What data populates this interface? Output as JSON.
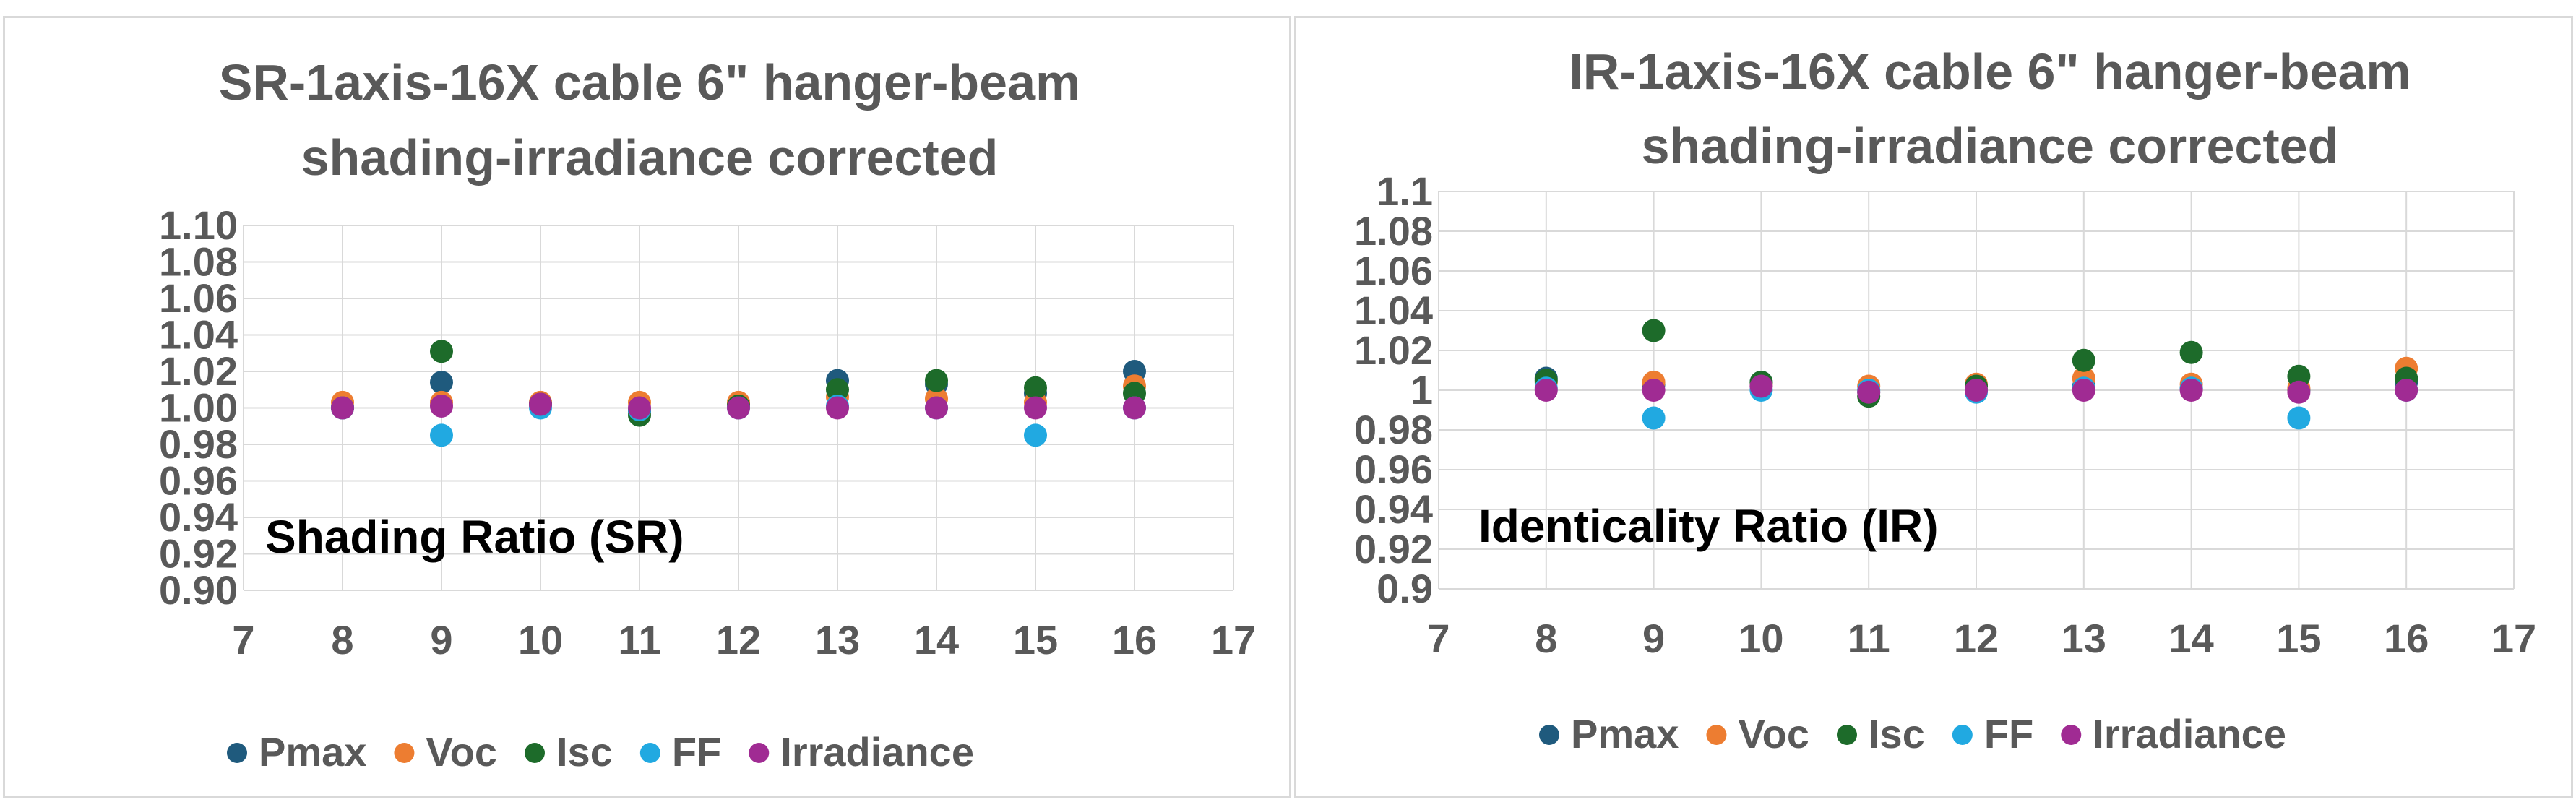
{
  "chart_data": [
    {
      "type": "scatter",
      "title_lines": [
        "SR-1axis-16X cable 6\" hanger-beam",
        "shading-irradiance corrected"
      ],
      "annotation": "Shading Ratio (SR)",
      "xlabel": "",
      "ylabel": "",
      "xlim": [
        7,
        17
      ],
      "ylim": [
        0.9,
        1.1
      ],
      "x_ticks": [
        "7",
        "8",
        "9",
        "10",
        "11",
        "12",
        "13",
        "14",
        "15",
        "16",
        "17"
      ],
      "y_ticks": [
        "0.90",
        "0.92",
        "0.94",
        "0.96",
        "0.98",
        "1.00",
        "1.02",
        "1.04",
        "1.06",
        "1.08",
        "1.10"
      ],
      "grid": true,
      "legend_position": "bottom",
      "series": [
        {
          "name": "Pmax",
          "color": "#1f5a7d",
          "x": [
            8,
            9,
            10,
            11,
            12,
            13,
            14,
            15,
            16
          ],
          "y": [
            1.0,
            1.014,
            1.002,
            0.998,
            1.002,
            1.015,
            1.013,
            1.008,
            1.02
          ]
        },
        {
          "name": "Voc",
          "color": "#ed7d31",
          "x": [
            8,
            9,
            10,
            11,
            12,
            13,
            14,
            15,
            16
          ],
          "y": [
            1.003,
            1.003,
            1.003,
            1.003,
            1.003,
            1.006,
            1.005,
            1.003,
            1.012
          ]
        },
        {
          "name": "Isc",
          "color": "#1d6b2a",
          "x": [
            8,
            9,
            10,
            11,
            12,
            13,
            14,
            15,
            16
          ],
          "y": [
            1.0,
            1.031,
            1.002,
            0.996,
            1.001,
            1.01,
            1.015,
            1.011,
            1.008
          ]
        },
        {
          "name": "FF",
          "color": "#21a9e1",
          "x": [
            8,
            9,
            10,
            11,
            12,
            13,
            14,
            15,
            16
          ],
          "y": [
            1.0,
            0.985,
            1.0,
            0.999,
            1.0,
            1.001,
            1.0,
            0.985,
            1.0
          ]
        },
        {
          "name": "Irradiance",
          "color": "#a02b93",
          "x": [
            8,
            9,
            10,
            11,
            12,
            13,
            14,
            15,
            16
          ],
          "y": [
            1.0,
            1.001,
            1.002,
            1.0,
            1.0,
            1.0,
            1.0,
            1.0,
            1.0
          ]
        }
      ]
    },
    {
      "type": "scatter",
      "title_lines": [
        "IR-1axis-16X cable 6\" hanger-beam",
        "shading-irradiance corrected"
      ],
      "annotation": "Identicality Ratio (IR)",
      "xlabel": "",
      "ylabel": "",
      "xlim": [
        7,
        17
      ],
      "ylim": [
        0.9,
        1.1
      ],
      "x_ticks": [
        "7",
        "8",
        "9",
        "10",
        "11",
        "12",
        "13",
        "14",
        "15",
        "16",
        "17"
      ],
      "y_ticks": [
        "0.9",
        "0.92",
        "0.94",
        "0.96",
        "0.98",
        "1",
        "1.02",
        "1.04",
        "1.06",
        "1.08",
        "1.1"
      ],
      "grid": true,
      "legend_position": "bottom",
      "series": [
        {
          "name": "Pmax",
          "color": "#1f5a7d",
          "x": [
            8,
            9,
            10,
            11,
            12,
            13,
            14,
            15,
            16
          ],
          "y": [
            1.006,
            1.003,
            1.004,
            0.999,
            1.0,
            1.002,
            1.001,
            1.0,
            1.004
          ]
        },
        {
          "name": "Voc",
          "color": "#ed7d31",
          "x": [
            8,
            9,
            10,
            11,
            12,
            13,
            14,
            15,
            16
          ],
          "y": [
            1.004,
            1.004,
            1.003,
            1.002,
            1.003,
            1.006,
            1.003,
            1.001,
            1.011
          ]
        },
        {
          "name": "Isc",
          "color": "#1d6b2a",
          "x": [
            8,
            9,
            10,
            11,
            12,
            13,
            14,
            15,
            16
          ],
          "y": [
            1.005,
            1.03,
            1.004,
            0.997,
            1.002,
            1.015,
            1.019,
            1.007,
            1.006
          ]
        },
        {
          "name": "FF",
          "color": "#21a9e1",
          "x": [
            8,
            9,
            10,
            11,
            12,
            13,
            14,
            15,
            16
          ],
          "y": [
            1.001,
            0.986,
            1.0,
            1.0,
            0.999,
            1.001,
            1.001,
            0.986,
            1.0
          ]
        },
        {
          "name": "Irradiance",
          "color": "#a02b93",
          "x": [
            8,
            9,
            10,
            11,
            12,
            13,
            14,
            15,
            16
          ],
          "y": [
            1.0,
            1.0,
            1.002,
            0.999,
            1.0,
            1.0,
            1.0,
            0.999,
            1.0
          ]
        }
      ]
    }
  ]
}
